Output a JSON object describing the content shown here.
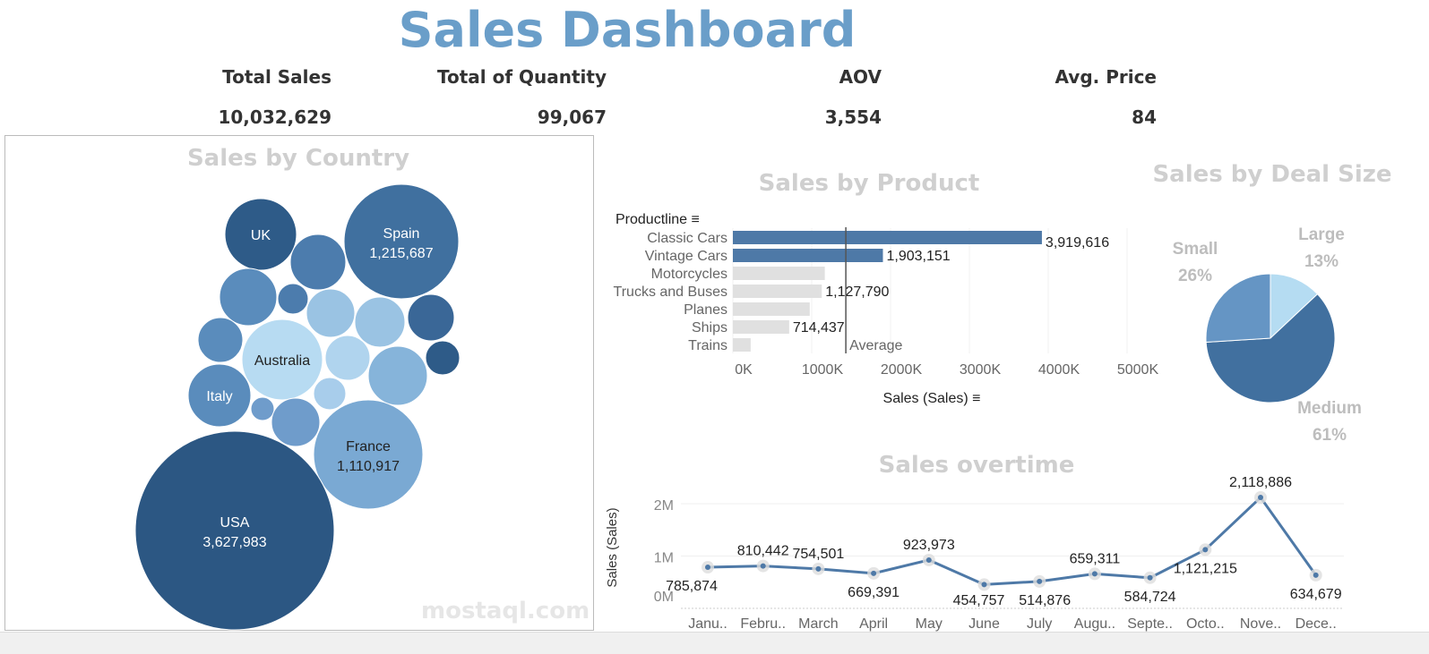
{
  "header": {
    "title": "Sales Dashboard"
  },
  "kpis": [
    {
      "label": "Total Sales",
      "value": "10,032,629"
    },
    {
      "label": "Total of Quantity",
      "value": "99,067"
    },
    {
      "label": "AOV",
      "value": "3,554"
    },
    {
      "label": "Avg. Price",
      "value": "84"
    }
  ],
  "watermark": "mostaql.com",
  "chart_data": [
    {
      "type": "bubble",
      "title": "Sales by Country",
      "labeled": [
        {
          "name": "USA",
          "value": "3,627,983"
        },
        {
          "name": "Spain",
          "value": "1,215,687"
        },
        {
          "name": "France",
          "value": "1,110,917"
        },
        {
          "name": "Australia",
          "value": ""
        },
        {
          "name": "UK",
          "value": ""
        },
        {
          "name": "Italy",
          "value": ""
        }
      ]
    },
    {
      "type": "bar",
      "title": "Sales by Product",
      "ylabel": "Productline",
      "xlabel": "Sales (Sales)",
      "categories": [
        "Classic Cars",
        "Vintage Cars",
        "Motorcycles",
        "Trucks and Buses",
        "Planes",
        "Ships",
        "Trains"
      ],
      "values": [
        3919616,
        1903151,
        1166000,
        1127790,
        975000,
        714437,
        226000
      ],
      "data_labels": [
        "3,919,616",
        "1,903,151",
        "",
        "1,127,790",
        "",
        "714,437",
        ""
      ],
      "highlighted": [
        true,
        true,
        false,
        false,
        false,
        false,
        false
      ],
      "reference_line": {
        "label": "Average",
        "value": 1433000
      },
      "xticks": [
        "0K",
        "1000K",
        "2000K",
        "3000K",
        "4000K",
        "5000K"
      ],
      "xlim": [
        0,
        5000000
      ],
      "colors": {
        "highlight": "#4e79a7",
        "other": "#e0e0e0"
      }
    },
    {
      "type": "pie",
      "title": "Sales by Deal Size",
      "slices": [
        {
          "name": "Large",
          "pct": 13,
          "label": "13%",
          "color": "#b5dcf2"
        },
        {
          "name": "Medium",
          "pct": 61,
          "label": "61%",
          "color": "#41709f"
        },
        {
          "name": "Small",
          "pct": 26,
          "label": "26%",
          "color": "#6595c4"
        }
      ]
    },
    {
      "type": "line",
      "title": "Sales overtime",
      "ylabel": "Sales (Sales)",
      "categories": [
        "Janu..",
        "Febru..",
        "March",
        "April",
        "May",
        "June",
        "July",
        "Augu..",
        "Septe..",
        "Octo..",
        "Nove..",
        "Dece.."
      ],
      "values": [
        785874,
        810442,
        754501,
        669391,
        923973,
        454757,
        514876,
        659311,
        584724,
        1121215,
        2118886,
        634679
      ],
      "data_labels": [
        "785,874",
        "810,442",
        "754,501",
        "669,391",
        "923,973",
        "454,757",
        "514,876",
        "659,311",
        "584,724",
        "1,121,215",
        "2,118,886",
        "634,679"
      ],
      "yticks": [
        "0M",
        "1M",
        "2M"
      ],
      "ylim": [
        0,
        2000000
      ],
      "color": "#4e79a7"
    }
  ]
}
